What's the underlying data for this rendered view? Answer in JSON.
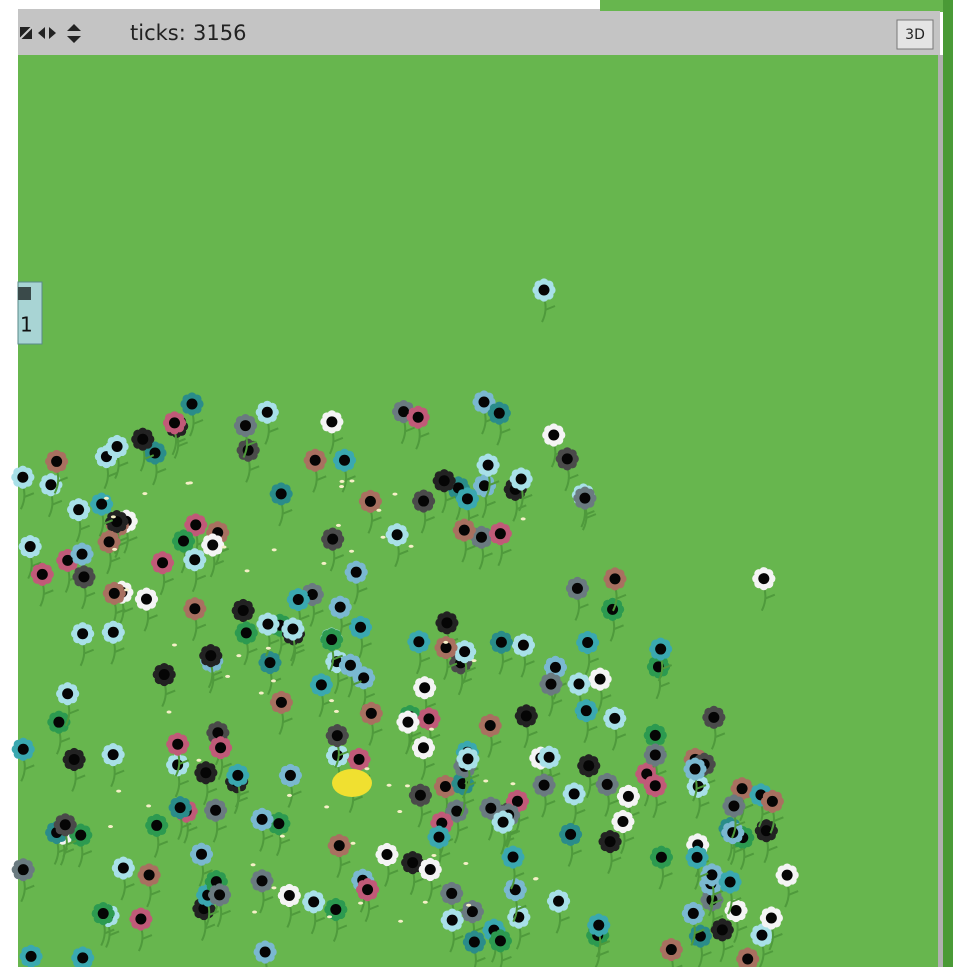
{
  "toolbar": {
    "ticks_label": "ticks:",
    "ticks": 3156,
    "button_3d": "3D"
  },
  "side_widget": {
    "value": 1
  }
}
